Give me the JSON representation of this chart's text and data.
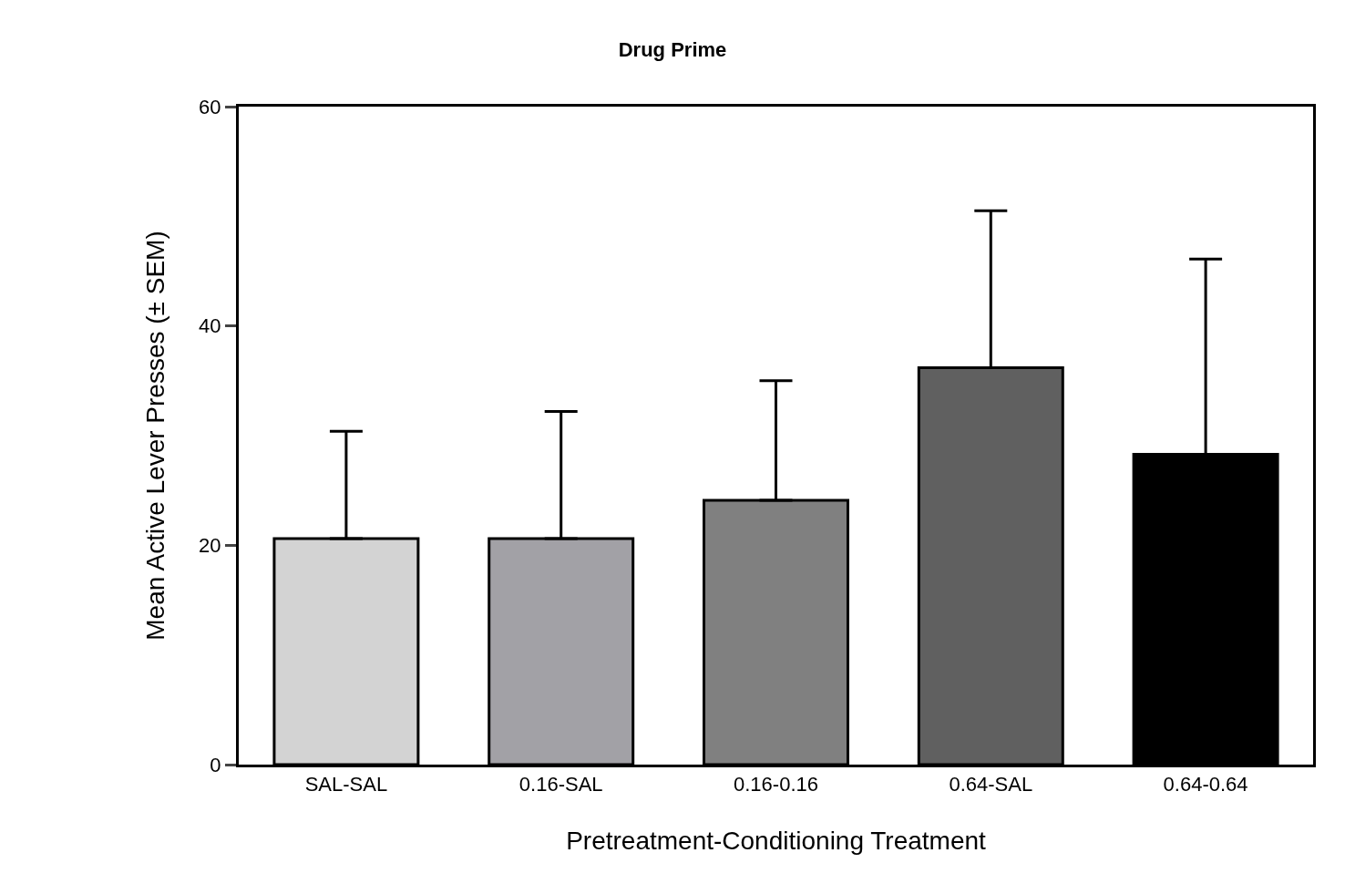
{
  "chart_data": {
    "type": "bar",
    "title": "Drug Prime",
    "xlabel": "Pretreatment-Conditioning Treatment",
    "ylabel": "Mean Active Lever Presses (± SEM)",
    "categories": [
      "SAL-SAL",
      "0.16-SAL",
      "0.16-0.16",
      "0.64-SAL",
      "0.64-0.64"
    ],
    "values": [
      20.6,
      20.6,
      24.1,
      36.2,
      28.3
    ],
    "errors": [
      [
        20.6,
        30.4
      ],
      [
        20.6,
        32.2
      ],
      [
        24.1,
        35.0
      ],
      [
        36.2,
        50.5
      ],
      [
        28.3,
        46.1
      ]
    ],
    "colors": [
      "#d3d3d3",
      "#a2a1a6",
      "#808080",
      "#606060",
      "#000000"
    ],
    "ylim": [
      0,
      60
    ],
    "yticks": [
      0,
      20,
      40,
      60
    ]
  }
}
